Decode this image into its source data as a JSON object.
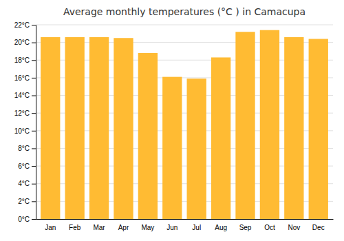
{
  "chart_data": {
    "type": "bar",
    "title": "Average monthly temperatures (°C ) in Camacupa",
    "categories": [
      "Jan",
      "Feb",
      "Mar",
      "Apr",
      "May",
      "Jun",
      "Jul",
      "Aug",
      "Sep",
      "Oct",
      "Nov",
      "Dec"
    ],
    "values": [
      20.6,
      20.6,
      20.6,
      20.5,
      18.8,
      16.1,
      15.9,
      18.3,
      21.2,
      21.4,
      20.6,
      20.4
    ],
    "color": "#FFBB33",
    "ylim": [
      0,
      22
    ],
    "yticks": [
      {
        "value": 0,
        "label": "0°C"
      },
      {
        "value": 2,
        "label": "2°C"
      },
      {
        "value": 4,
        "label": "4°C"
      },
      {
        "value": 6,
        "label": "6°C"
      },
      {
        "value": 8,
        "label": "8°C"
      },
      {
        "value": 10,
        "label": "10°C"
      },
      {
        "value": 12,
        "label": "12°C"
      },
      {
        "value": 14,
        "label": "14°C"
      },
      {
        "value": 16,
        "label": "16°C"
      },
      {
        "value": 18,
        "label": "18°C"
      },
      {
        "value": 20,
        "label": "20°C"
      },
      {
        "value": 22,
        "label": "22°C"
      }
    ],
    "grid": true
  }
}
